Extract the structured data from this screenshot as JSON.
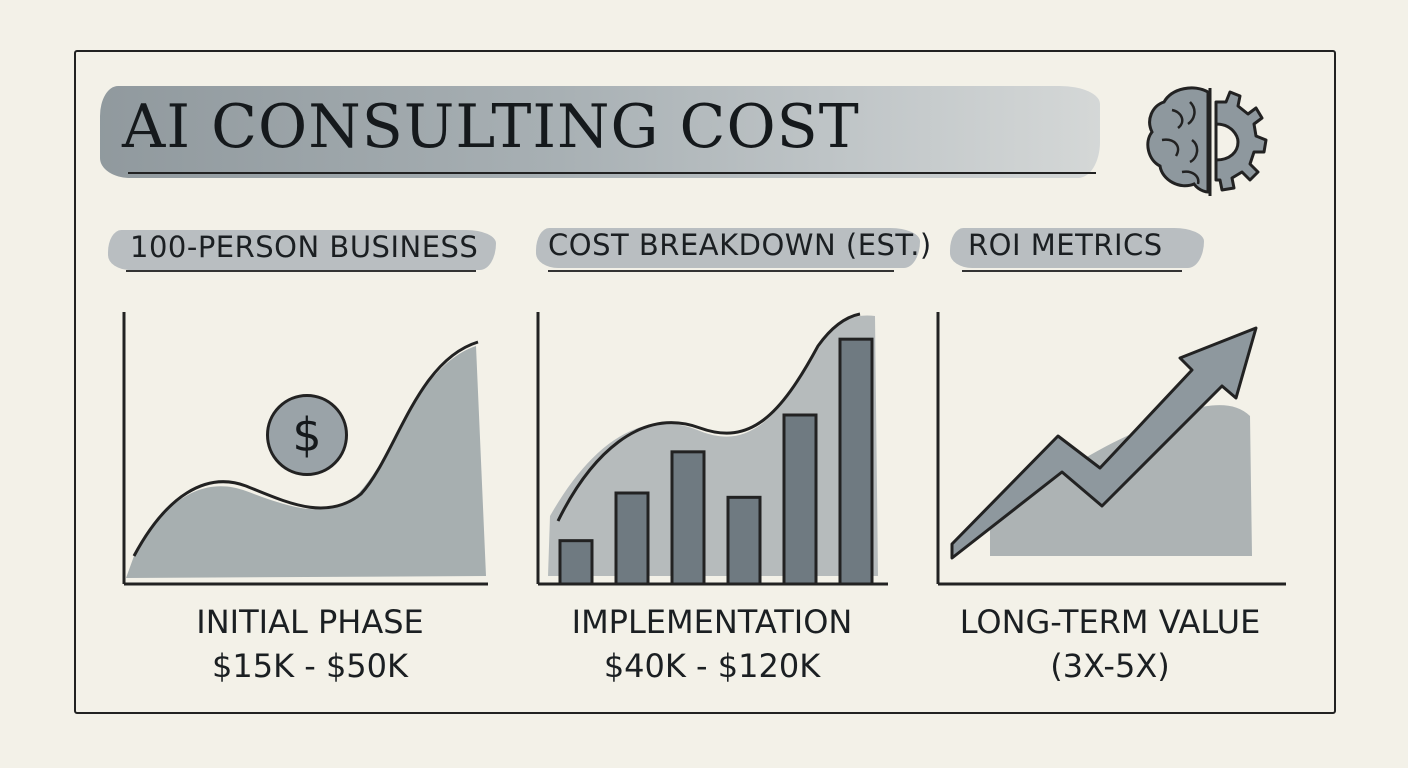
{
  "title": "AI CONSULTING COST",
  "sections": [
    {
      "heading": "100-PERSON BUSINESS",
      "caption_line1": "INITIAL PHASE",
      "caption_line2": "$15K - $50K",
      "badge": "$"
    },
    {
      "heading": "COST BREAKDOWN (EST.)",
      "caption_line1": "IMPLEMENTATION",
      "caption_line2": "$40K - $120K"
    },
    {
      "heading": "ROI METRICS",
      "caption_line1": "LONG-TERM VALUE",
      "caption_line2": "(3X-5X)"
    }
  ],
  "icons": {
    "brand": "brain-gear-icon",
    "badge": "dollar-coin-icon",
    "trend": "up-arrow-icon"
  },
  "colors": {
    "ink": "#1f2326",
    "wash": "#8e989e",
    "paper": "#f3f1e8"
  },
  "chart_data": [
    {
      "type": "area",
      "title": "",
      "values": []
    },
    {
      "type": "bar",
      "title": "",
      "values": [
        2,
        4.2,
        6.1,
        4,
        7.8,
        11.3
      ]
    },
    {
      "type": "line",
      "title": "",
      "values": []
    }
  ]
}
